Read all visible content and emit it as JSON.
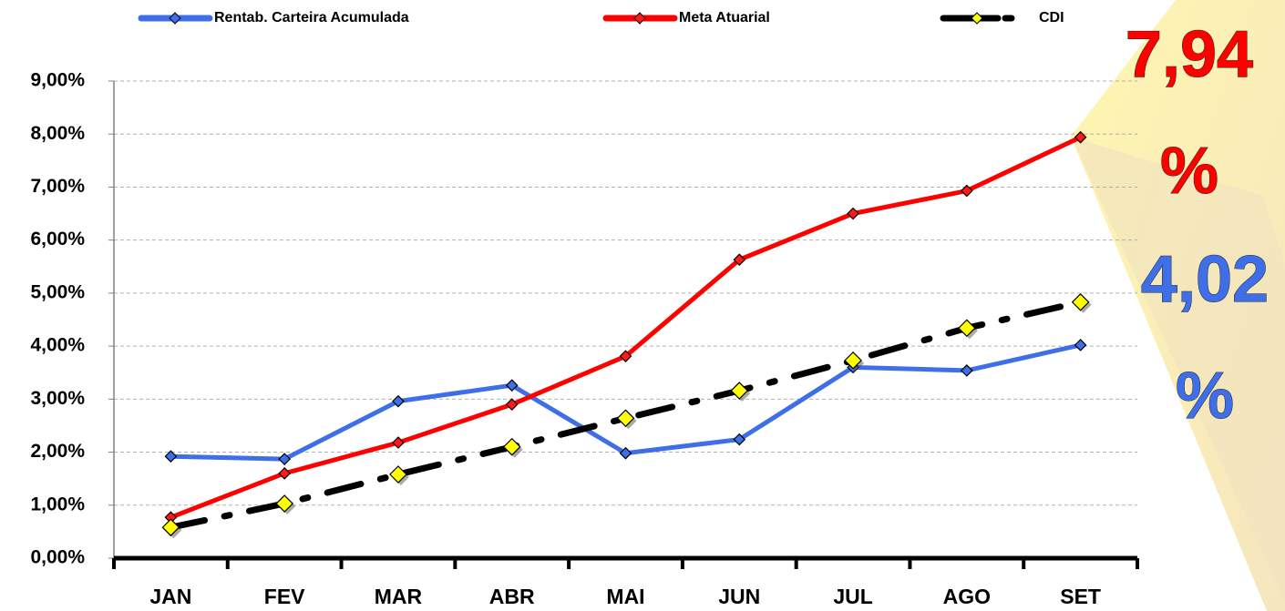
{
  "chart_data": {
    "type": "line",
    "categories": [
      "JAN",
      "FEV",
      "MAR",
      "ABR",
      "MAI",
      "JUN",
      "JUL",
      "AGO",
      "SET"
    ],
    "series": [
      {
        "name": "Rentab. Carteira Acumulada",
        "color": "#3f6fe8",
        "marker_color": "#3f6fe8",
        "dash": "solid",
        "values": [
          1.92,
          1.87,
          2.96,
          3.26,
          1.98,
          2.24,
          3.6,
          3.54,
          4.02
        ]
      },
      {
        "name": "Meta Atuarial",
        "color": "#ff0000",
        "marker_color": "#ff1a1a",
        "dash": "solid",
        "values": [
          0.77,
          1.6,
          2.18,
          2.9,
          3.81,
          5.63,
          6.5,
          6.93,
          7.94
        ]
      },
      {
        "name": "CDI",
        "color": "#000000",
        "marker_color": "#ffff00",
        "dash": "dashdot",
        "values": [
          0.58,
          1.03,
          1.58,
          2.1,
          2.64,
          3.16,
          3.73,
          4.34,
          4.83
        ]
      }
    ],
    "ylim": [
      0,
      9
    ],
    "yticks": [
      {
        "value": 0,
        "label": "0,00%"
      },
      {
        "value": 1,
        "label": "1,00%"
      },
      {
        "value": 2,
        "label": "2,00%"
      },
      {
        "value": 3,
        "label": "3,00%"
      },
      {
        "value": 4,
        "label": "4,00%"
      },
      {
        "value": 5,
        "label": "5,00%"
      },
      {
        "value": 6,
        "label": "6,00%"
      },
      {
        "value": 7,
        "label": "7,00%"
      },
      {
        "value": 8,
        "label": "8,00%"
      },
      {
        "value": 9,
        "label": "9,00%"
      }
    ],
    "grid": true,
    "legend": "top",
    "annotations": [
      {
        "lines": [
          "7,94",
          "%"
        ],
        "color": "#ff0000"
      },
      {
        "lines": [
          "4,02",
          "%"
        ],
        "color": "#3f6fe8"
      }
    ]
  }
}
